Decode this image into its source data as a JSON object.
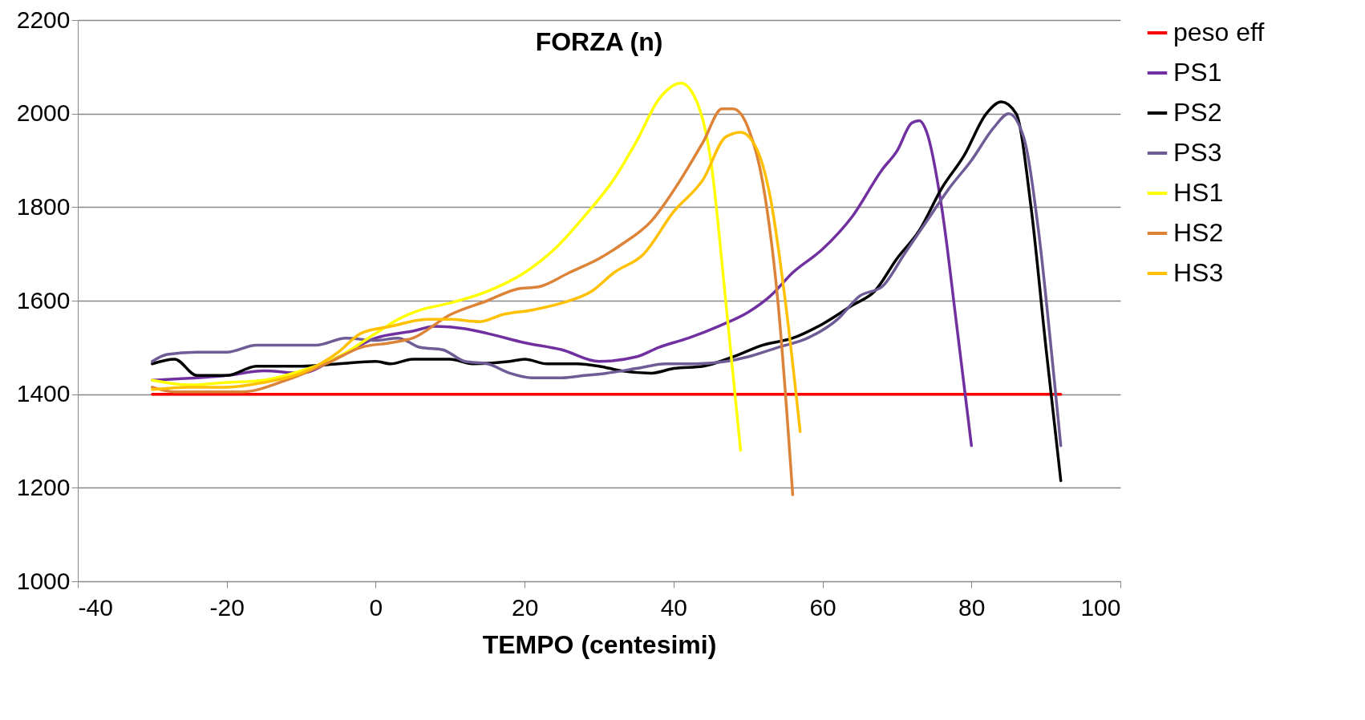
{
  "chart_data": {
    "type": "line",
    "title": "FORZA (n)",
    "xlabel": "TEMPO (centesimi)",
    "xlim": [
      -40,
      100
    ],
    "xticks": [
      -40,
      -20,
      0,
      20,
      40,
      60,
      80,
      100
    ],
    "ylim": [
      1000,
      2200
    ],
    "yticks": [
      1000,
      1200,
      1400,
      1600,
      1800,
      2000,
      2200
    ],
    "grid": "y",
    "legend": "right",
    "marker": "none",
    "line_style": "solid",
    "series": [
      {
        "name": "peso eff",
        "color": "#ff0000",
        "x": [
          -30,
          92
        ],
        "values": [
          1400,
          1400
        ]
      },
      {
        "name": "PS1",
        "color": "#7030a0",
        "x": [
          -30,
          -20,
          -15,
          -10,
          -5,
          0,
          5,
          8,
          12,
          15,
          20,
          25,
          30,
          35,
          38,
          42,
          46,
          50,
          53,
          56,
          60,
          64,
          68,
          70,
          72,
          73,
          74,
          76,
          78,
          80
        ],
        "values": [
          1430,
          1440,
          1450,
          1445,
          1480,
          1520,
          1535,
          1545,
          1540,
          1530,
          1510,
          1495,
          1470,
          1480,
          1500,
          1520,
          1545,
          1575,
          1610,
          1660,
          1710,
          1780,
          1880,
          1920,
          1980,
          1985,
          1960,
          1800,
          1550,
          1290
        ]
      },
      {
        "name": "PS2",
        "color": "#000000",
        "x": [
          -30,
          -27,
          -24,
          -20,
          -16,
          -10,
          -5,
          0,
          2,
          5,
          10,
          13,
          18,
          20,
          23,
          27,
          30,
          33,
          37,
          40,
          44,
          48,
          52,
          56,
          60,
          64,
          67,
          70,
          73,
          76,
          79,
          82,
          84,
          86,
          88,
          90,
          92
        ],
        "values": [
          1465,
          1475,
          1440,
          1440,
          1460,
          1460,
          1465,
          1470,
          1465,
          1475,
          1475,
          1465,
          1470,
          1475,
          1465,
          1465,
          1460,
          1450,
          1445,
          1455,
          1460,
          1480,
          1505,
          1520,
          1550,
          1590,
          1620,
          1690,
          1750,
          1840,
          1910,
          2000,
          2025,
          2000,
          1800,
          1500,
          1215
        ]
      },
      {
        "name": "PS3",
        "color": "#6f5b95",
        "x": [
          -30,
          -28,
          -24,
          -20,
          -16,
          -12,
          -8,
          -4,
          0,
          3,
          6,
          9,
          12,
          15,
          18,
          21,
          25,
          28,
          31,
          35,
          39,
          43,
          47,
          50,
          54,
          58,
          62,
          65,
          68,
          71,
          74,
          77,
          80,
          83,
          85,
          87,
          89,
          91,
          92
        ],
        "values": [
          1470,
          1485,
          1490,
          1490,
          1505,
          1505,
          1505,
          1520,
          1515,
          1520,
          1500,
          1495,
          1470,
          1465,
          1445,
          1435,
          1435,
          1440,
          1445,
          1455,
          1465,
          1465,
          1470,
          1480,
          1500,
          1520,
          1560,
          1610,
          1630,
          1700,
          1770,
          1840,
          1900,
          1970,
          2000,
          1950,
          1750,
          1450,
          1290
        ]
      },
      {
        "name": "HS1",
        "color": "#ffff00",
        "x": [
          -30,
          -25,
          -20,
          -15,
          -10,
          -5,
          0,
          3,
          6,
          10,
          15,
          20,
          24,
          28,
          32,
          35,
          38,
          41,
          43,
          45,
          47,
          49
        ],
        "values": [
          1430,
          1420,
          1425,
          1430,
          1450,
          1480,
          1530,
          1560,
          1580,
          1595,
          1620,
          1660,
          1710,
          1780,
          1860,
          1940,
          2030,
          2065,
          2030,
          1900,
          1600,
          1280
        ]
      },
      {
        "name": "HS2",
        "color": "#dd8338",
        "x": [
          -30,
          -27,
          -22,
          -18,
          -12,
          -6,
          -2,
          2,
          5,
          10,
          15,
          19,
          22,
          26,
          30,
          33,
          37,
          41,
          44,
          46.5,
          48,
          50,
          52,
          54,
          56
        ],
        "values": [
          1415,
          1405,
          1405,
          1405,
          1430,
          1470,
          1500,
          1510,
          1520,
          1570,
          1600,
          1625,
          1630,
          1660,
          1690,
          1720,
          1770,
          1860,
          1940,
          2010,
          2010,
          1970,
          1850,
          1600,
          1185
        ]
      },
      {
        "name": "HS3",
        "color": "#ffc000",
        "x": [
          -30,
          -25,
          -20,
          -15,
          -10,
          -5,
          -2,
          2,
          7,
          10,
          14,
          17,
          21,
          25,
          29,
          32,
          36,
          40,
          44,
          47,
          49,
          51,
          53,
          55,
          57
        ],
        "values": [
          1410,
          1415,
          1415,
          1425,
          1445,
          1490,
          1530,
          1545,
          1560,
          1560,
          1555,
          1570,
          1580,
          1595,
          1620,
          1660,
          1700,
          1790,
          1860,
          1950,
          1960,
          1930,
          1820,
          1600,
          1320
        ]
      }
    ]
  }
}
